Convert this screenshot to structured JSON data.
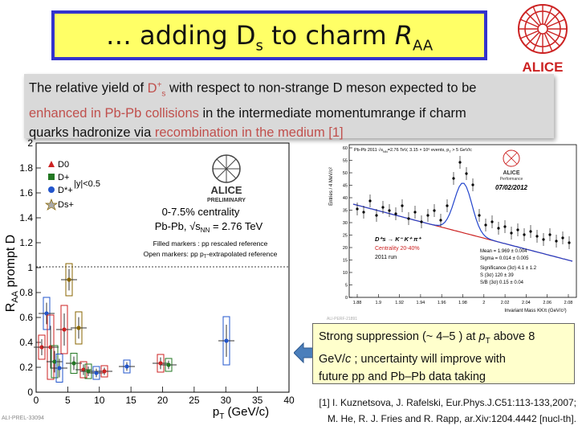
{
  "title": {
    "prefix": "… adding D",
    "sub_s": "s",
    "mid": " to charm ",
    "R": "R",
    "sub_aa": "AA"
  },
  "logo": {
    "text": "ALICE",
    "color": "#cc2222"
  },
  "intro": {
    "t1": "The relative yield of ",
    "ds": "D",
    "ds_sup": "+",
    "ds_sub": "s",
    "t2": " with respect to non-strange D meson expected to be",
    "hl1": "enhanced in Pb-Pb collisions",
    "t3": " in the intermediate momentumrange if charm",
    "t4": "quarks hadronize via ",
    "hl2": "recombination in the medium [1]"
  },
  "left_plot": {
    "ylabel_main": "R",
    "ylabel_sub": "AA",
    "ylabel_rest": " prompt D",
    "xlabel_main": "p",
    "xlabel_sub": "T",
    "xlabel_rest": " (GeV/c)",
    "yticks": [
      "0",
      "0.2",
      "0.4",
      "0.6",
      "0.8",
      "1",
      "1.2",
      "1.4",
      "1.6",
      "1.8",
      "2"
    ],
    "xticks": [
      "0",
      "5",
      "10",
      "15",
      "20",
      "25",
      "30",
      "35",
      "40"
    ],
    "legend": [
      "D0",
      "D+",
      "D*+",
      "Ds+"
    ],
    "legend_colors": [
      "#cc2222",
      "#227722",
      "#2255cc",
      "#886600"
    ],
    "rapidity": "|y|<0.5",
    "preliminary": "PRELIMINARY",
    "alice": "ALICE",
    "centrality": "0-7.5% centrality",
    "system": "Pb-Pb, √s",
    "system_sub": "NN",
    "system_rest": " = 2.76 TeV",
    "filled_note": "Filled markers : pp rescaled reference",
    "open_note": "Open markers: pp p",
    "open_note_sub": "T",
    "open_note_rest": "-extrapolated reference",
    "tag": "ALI-PREL-33094"
  },
  "right_plot": {
    "header": "Pb-Pb 2011 √s",
    "header_sub": "NN",
    "header_rest": "=2.76 TeV, 3.15 × 10⁶ events, p",
    "header_rest_sub": "T",
    "header_end": " > 5 GeV/c",
    "ylabel": "Entries / 4 MeV/c²",
    "yticks": [
      "0",
      "5",
      "10",
      "15",
      "20",
      "25",
      "30",
      "35",
      "40",
      "45",
      "50",
      "55",
      "60"
    ],
    "xticks": [
      "1.88",
      "1.9",
      "1.92",
      "1.94",
      "1.96",
      "1.98",
      "2",
      "2.02",
      "2.04",
      "2.06",
      "2.08"
    ],
    "xlabel": "Invariant Mass KKπ (GeV/c²)",
    "alice": "ALICE",
    "performance": "Performance",
    "date": "07/02/2012",
    "decay": "D⁺s → K⁻ K⁺ π⁺",
    "centrality": "Centrality 20-40%",
    "run": "2011 run",
    "stats": [
      "Mean = 1.969 ± 0.004",
      "Sigma = 0.014 ± 0.005",
      "Significance (3σ) 4.1 ± 1.2",
      "S (3σ) 120 ± 39",
      "S/B (3σ) 0.15 ± 0.04"
    ],
    "tag": "ALI-PERF-21891"
  },
  "callout": {
    "t1": "Strong suppression (~ 4–5 ) at ",
    "p": "p",
    "p_sub": "T",
    "t2": " above 8",
    "t3": "GeV/",
    "c": "c",
    "t4": " ;  uncertainty will improve with",
    "t5": "future pp and Pb–Pb data taking"
  },
  "refs": [
    "[1] I. Kuznetsova, J. Rafelski, Eur.Phys.J.C51:113-133,2007;",
    "M. He, R. J. Fries and R. Rapp, ar.Xiv:1204.4442 [nucl-th]."
  ]
}
